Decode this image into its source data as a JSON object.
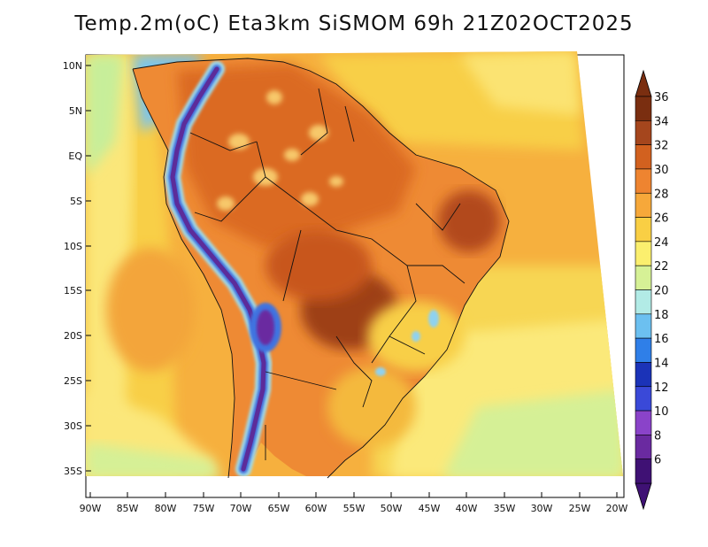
{
  "title": "Temp.2m(oC) Eta3km SiSMOM 69h 21Z02OCT2025",
  "map": {
    "lat_ticks": [
      "10N",
      "5N",
      "EQ",
      "5S",
      "10S",
      "15S",
      "20S",
      "25S",
      "30S",
      "35S"
    ],
    "lon_ticks": [
      "90W",
      "85W",
      "80W",
      "75W",
      "70W",
      "65W",
      "60W",
      "55W",
      "50W",
      "45W",
      "40W",
      "35W",
      "30W",
      "25W",
      "20W"
    ]
  },
  "colorbar": {
    "labels": [
      "36",
      "34",
      "32",
      "30",
      "28",
      "26",
      "24",
      "22",
      "20",
      "18",
      "16",
      "14",
      "12",
      "10",
      "8",
      "6"
    ],
    "colors": [
      "#7a2e10",
      "#a5461d",
      "#d2611f",
      "#ee8430",
      "#f6a83a",
      "#f9cf44",
      "#fbef6e",
      "#d6f196",
      "#b2ebe6",
      "#6cc0f0",
      "#2f7fe8",
      "#1b33b8",
      "#3a49d8",
      "#8a43c9",
      "#6a2aa0",
      "#3f1174"
    ]
  }
}
